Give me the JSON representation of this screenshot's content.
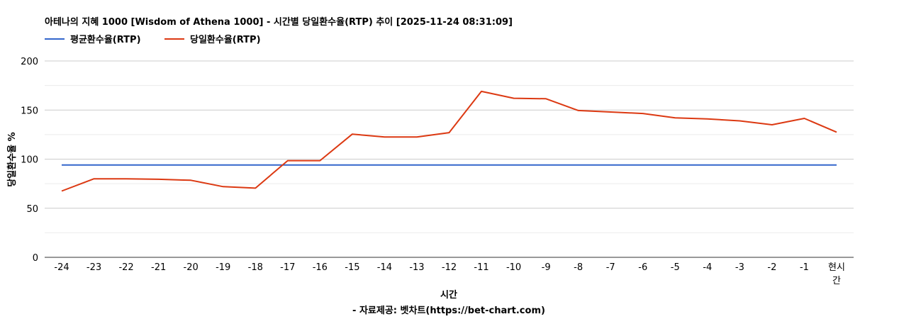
{
  "chart_data": {
    "type": "line",
    "title": "아테나의 지혜 1000 [Wisdom of Athena 1000] - 시간별 당일환수율(RTP) 추이 [2025-11-24 08:31:09]",
    "xlabel": "시간",
    "ylabel": "당일환수율 %",
    "footer": "- 자료제공: 벳차트(https://bet-chart.com)",
    "categories": [
      "-24",
      "-23",
      "-22",
      "-21",
      "-20",
      "-19",
      "-18",
      "-17",
      "-16",
      "-15",
      "-14",
      "-13",
      "-12",
      "-11",
      "-10",
      "-9",
      "-8",
      "-7",
      "-6",
      "-5",
      "-4",
      "-3",
      "-2",
      "-1",
      "현시간"
    ],
    "ylim": [
      0,
      200
    ],
    "yticks": [
      0,
      50,
      100,
      150,
      200
    ],
    "grid": true,
    "legend_position": "top-left",
    "series": [
      {
        "name": "평균환수율(RTP)",
        "color": "#3366cc",
        "values": [
          94,
          94,
          94,
          94,
          94,
          94,
          94,
          94,
          94,
          94,
          94,
          94,
          94,
          94,
          94,
          94,
          94,
          94,
          94,
          94,
          94,
          94,
          94,
          94,
          94
        ]
      },
      {
        "name": "당일환수율(RTP)",
        "color": "#dc3912",
        "values": [
          67.5,
          80,
          80,
          79.5,
          78.5,
          72,
          70.5,
          98.5,
          98.5,
          125.5,
          122.5,
          122.5,
          127,
          169,
          162,
          161.5,
          149.5,
          148,
          146.5,
          142,
          141,
          139,
          135,
          141.5,
          127.5
        ]
      }
    ]
  }
}
